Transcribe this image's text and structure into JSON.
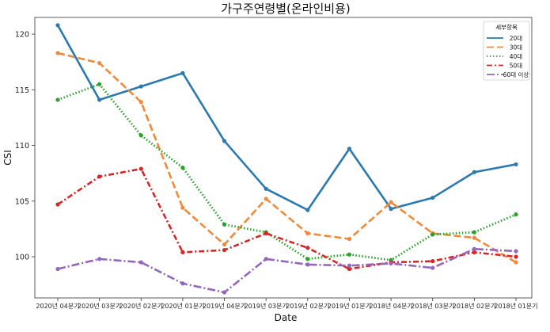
{
  "chart_data": {
    "type": "line",
    "title": "가구주연령별(온라인비용)",
    "xlabel": "Date",
    "ylabel": "CSI",
    "ylim": [
      96.3,
      121.5
    ],
    "yticks": [
      100,
      105,
      110,
      115,
      120
    ],
    "grid": false,
    "legend": {
      "title": "세부항목",
      "position": "top-right"
    },
    "categories": [
      "2020년 04분기",
      "2020년 03분기",
      "2020년 02분기",
      "2020년 01분기",
      "2019년 04분기",
      "2019년 03분기",
      "2019년 02분기",
      "2019년 01분기",
      "2018년 04분기",
      "2018년 03분기",
      "2018년 02분기",
      "2018년 01분기"
    ],
    "series": [
      {
        "name": "20대",
        "color": "#2a7ab0",
        "dash": "",
        "width": 2.6,
        "values": [
          120.8,
          114.1,
          115.3,
          116.5,
          110.4,
          106.1,
          104.2,
          109.7,
          104.3,
          105.3,
          107.6,
          108.3
        ]
      },
      {
        "name": "30대",
        "color": "#f08a3a",
        "dash": "9,4",
        "width": 2.6,
        "values": [
          118.3,
          117.4,
          113.9,
          104.4,
          101.1,
          105.2,
          102.1,
          101.6,
          104.9,
          102.1,
          101.7,
          99.5
        ]
      },
      {
        "name": "40대",
        "color": "#2ca02c",
        "dash": "1.5,2.5",
        "width": 2.8,
        "values": [
          114.1,
          115.5,
          110.9,
          108.0,
          102.9,
          102.2,
          99.8,
          100.2,
          99.7,
          102.0,
          102.2,
          103.8
        ]
      },
      {
        "name": "50대",
        "color": "#d62728",
        "dash": "7,3,2,3",
        "width": 2.6,
        "values": [
          104.7,
          107.2,
          107.9,
          100.4,
          100.6,
          102.1,
          100.8,
          98.9,
          99.5,
          99.6,
          100.4,
          100.0
        ]
      },
      {
        "name": "60대 이상",
        "color": "#9467bd",
        "dash": "10,3,2,3",
        "width": 2.6,
        "values": [
          98.9,
          99.8,
          99.5,
          97.6,
          96.8,
          99.8,
          99.3,
          99.2,
          99.4,
          99.0,
          100.7,
          100.5
        ]
      }
    ]
  }
}
